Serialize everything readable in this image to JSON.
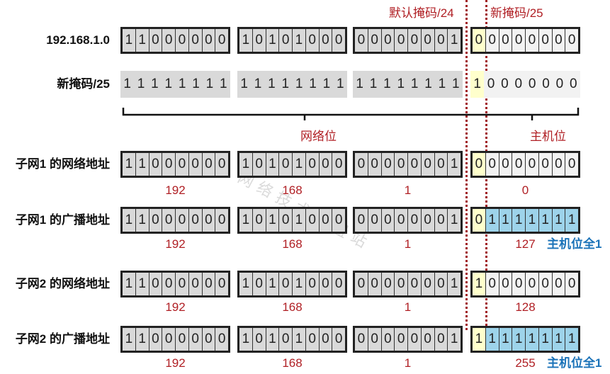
{
  "headers": {
    "default_mask": "默认掩码/24",
    "new_mask": "新掩码/25"
  },
  "brace_labels": {
    "network": "网络位",
    "host": "主机位"
  },
  "rows": [
    {
      "label": "192.168.1.0",
      "octets": [
        "11000000",
        "10101000",
        "00000001",
        "00000000"
      ],
      "boxed": true,
      "host_fill": "white"
    },
    {
      "label": "新掩码/25",
      "octets": [
        "11111111",
        "11111111",
        "11111111",
        "10000000"
      ],
      "boxed": false,
      "host_fill": "white"
    },
    {
      "label": "子网1 的网络地址",
      "octets": [
        "11000000",
        "10101000",
        "00000001",
        "00000000"
      ],
      "boxed": true,
      "host_fill": "white",
      "decimals": [
        "192",
        "168",
        "1",
        "0"
      ]
    },
    {
      "label": "子网1 的广播地址",
      "octets": [
        "11000000",
        "10101000",
        "00000001",
        "01111111"
      ],
      "boxed": true,
      "host_fill": "blue",
      "decimals": [
        "192",
        "168",
        "1",
        "127"
      ],
      "note": "主机位全1"
    },
    {
      "label": "子网2 的网络地址",
      "octets": [
        "11000000",
        "10101000",
        "00000001",
        "10000000"
      ],
      "boxed": true,
      "host_fill": "white",
      "decimals": [
        "192",
        "168",
        "1",
        "128"
      ]
    },
    {
      "label": "子网2 的广播地址",
      "octets": [
        "11000000",
        "10101000",
        "00000001",
        "11111111"
      ],
      "boxed": true,
      "host_fill": "blue",
      "decimals": [
        "192",
        "168",
        "1",
        "255"
      ],
      "note": "主机位全1"
    }
  ],
  "watermark": "© 网络技术联盟站",
  "colors": {
    "octet_gray": "#d9d9d9",
    "subnet_bit": "#ffffcc",
    "host_white": "#f2f2f2",
    "host_blue": "#9dd3ea",
    "red": "#b01f24",
    "blue": "#1a72b8"
  }
}
